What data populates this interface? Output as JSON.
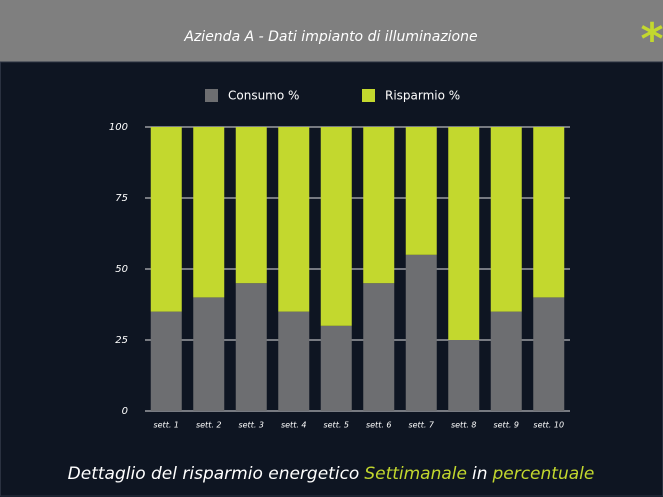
{
  "header": {
    "title": "Azienda A - Dati impianto di illuminazione",
    "badge": "*"
  },
  "chart_data": {
    "type": "bar",
    "stacked": true,
    "categories": [
      "sett. 1",
      "sett. 2",
      "sett. 3",
      "sett. 4",
      "sett. 5",
      "sett. 6",
      "sett. 7",
      "sett. 8",
      "sett. 9",
      "sett. 10"
    ],
    "series": [
      {
        "name": "Consumo %",
        "color": "#6d6e71",
        "values": [
          35,
          40,
          45,
          35,
          30,
          45,
          55,
          25,
          35,
          40
        ]
      },
      {
        "name": "Risparmio %",
        "color": "#c3d82e",
        "values": [
          65,
          60,
          55,
          65,
          70,
          55,
          45,
          75,
          65,
          60
        ]
      }
    ],
    "ylim": [
      0,
      100
    ],
    "yticks": [
      0,
      25,
      50,
      75,
      100
    ],
    "grid": true,
    "legend": "top"
  },
  "caption": {
    "segments": [
      {
        "text": "Dettaglio del risparmio energetico",
        "color": "#ffffff"
      },
      {
        "text": "Settimanale",
        "color": "#c3d82e"
      },
      {
        "text": "in",
        "color": "#ffffff"
      },
      {
        "text": "percentuale",
        "color": "#c3d82e"
      }
    ]
  }
}
